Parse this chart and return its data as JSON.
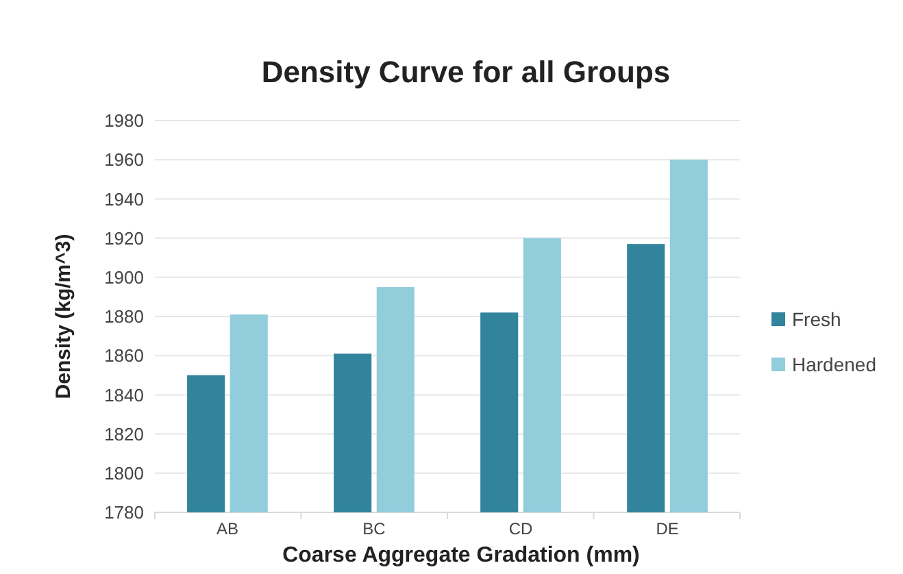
{
  "chart_data": {
    "type": "bar",
    "title": "Density Curve for all Groups",
    "xlabel": "Coarse Aggregate Gradation (mm)",
    "ylabel": "Density (kg/m^3)",
    "categories": [
      "AB",
      "BC",
      "CD",
      "DE"
    ],
    "series": [
      {
        "name": "Fresh",
        "color": "#31849b",
        "values": [
          1850,
          1861,
          1882,
          1917
        ]
      },
      {
        "name": "Hardened",
        "color": "#92cddc",
        "values": [
          1881,
          1895,
          1920,
          1960
        ]
      }
    ],
    "ylim": [
      1780,
      1980
    ],
    "yticks": [
      1780,
      1800,
      1820,
      1840,
      1860,
      1880,
      1900,
      1920,
      1940,
      1960,
      1980
    ],
    "grid": "y",
    "legend": "right"
  }
}
